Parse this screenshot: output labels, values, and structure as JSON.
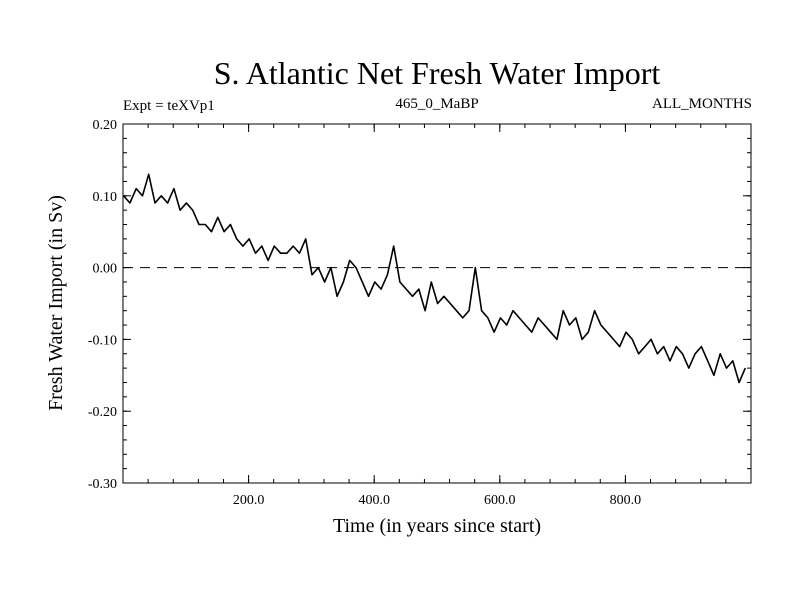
{
  "chart_data": {
    "type": "line",
    "title": "S. Atlantic Net Fresh Water Import",
    "subtitle_left": "Expt = teXVp1",
    "subtitle_center": "465_0_MaBP",
    "subtitle_right": "ALL_MONTHS",
    "xlabel": "Time (in years since start)",
    "ylabel": "Fresh Water Import (in Sv)",
    "xlim": [
      0,
      1000
    ],
    "ylim": [
      -0.3,
      0.2
    ],
    "xticks": [
      200,
      400,
      600,
      800
    ],
    "xtick_labels": [
      "200.0",
      "400.0",
      "600.0",
      "800.0"
    ],
    "yticks": [
      0.2,
      0.1,
      0.0,
      -0.1,
      -0.2,
      -0.3
    ],
    "ytick_labels": [
      "0.20",
      "0.10",
      "0.00",
      "-0.10",
      "-0.20",
      "-0.30"
    ],
    "reference_line": 0.0,
    "series": [
      {
        "name": "Fresh Water Import",
        "color": "#000000",
        "x_start": 1,
        "x_step": 10,
        "values": [
          0.1,
          0.09,
          0.11,
          0.1,
          0.13,
          0.09,
          0.1,
          0.09,
          0.11,
          0.08,
          0.09,
          0.08,
          0.06,
          0.06,
          0.05,
          0.07,
          0.05,
          0.06,
          0.04,
          0.03,
          0.04,
          0.02,
          0.03,
          0.01,
          0.03,
          0.02,
          0.02,
          0.03,
          0.02,
          0.04,
          -0.01,
          0.0,
          -0.02,
          0.0,
          -0.04,
          -0.02,
          0.01,
          0.0,
          -0.02,
          -0.04,
          -0.02,
          -0.03,
          -0.01,
          0.03,
          -0.02,
          -0.03,
          -0.04,
          -0.03,
          -0.06,
          -0.02,
          -0.05,
          -0.04,
          -0.05,
          -0.06,
          -0.07,
          -0.06,
          0.0,
          -0.06,
          -0.07,
          -0.09,
          -0.07,
          -0.08,
          -0.06,
          -0.07,
          -0.08,
          -0.09,
          -0.07,
          -0.08,
          -0.09,
          -0.1,
          -0.06,
          -0.08,
          -0.07,
          -0.1,
          -0.09,
          -0.06,
          -0.08,
          -0.09,
          -0.1,
          -0.11,
          -0.09,
          -0.1,
          -0.12,
          -0.11,
          -0.1,
          -0.12,
          -0.11,
          -0.13,
          -0.11,
          -0.12,
          -0.14,
          -0.12,
          -0.11,
          -0.13,
          -0.15,
          -0.12,
          -0.14,
          -0.13,
          -0.16,
          -0.14
        ]
      }
    ]
  }
}
